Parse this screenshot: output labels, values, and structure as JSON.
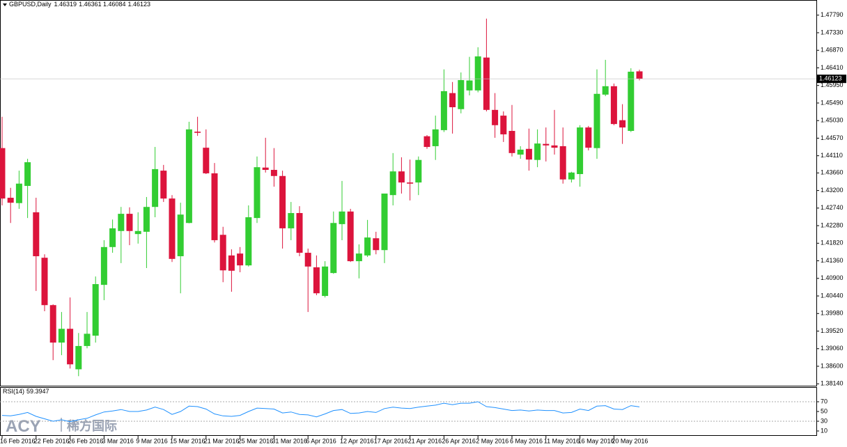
{
  "chart_data": [
    {
      "type": "candlestick",
      "title": "GBPUSD,Daily",
      "categories": [
        "16 Feb 2016",
        null,
        null,
        null,
        "22 Feb 2016",
        null,
        null,
        null,
        "26 Feb 2016",
        null,
        null,
        null,
        "3 Mar 2016",
        null,
        null,
        null,
        "9 Mar 2016",
        null,
        null,
        null,
        "15 Mar 2016",
        null,
        null,
        null,
        "21 Mar 2016",
        null,
        null,
        null,
        "25 Mar 2016",
        null,
        null,
        null,
        "31 Mar 2016",
        null,
        null,
        null,
        "6 Apr 2016",
        null,
        null,
        null,
        "12 Apr 2016",
        null,
        null,
        null,
        "17 Apr 2016",
        null,
        null,
        null,
        "21 Apr 2016",
        null,
        null,
        null,
        "26 Apr 2016",
        null,
        null,
        null,
        "2 May 2016",
        null,
        null,
        null,
        "6 May 2016",
        null,
        null,
        null,
        "11 May 2016",
        null,
        null,
        null,
        "16 May 2016",
        null,
        null,
        null,
        "20 May 2016",
        null,
        null,
        null
      ],
      "open": [
        1.4431,
        1.4301,
        1.4287,
        1.4332,
        1.4263,
        1.4144,
        1.402,
        1.3922,
        1.3958,
        1.3852,
        1.3913,
        1.394,
        1.4073,
        1.4172,
        1.4214,
        1.4259,
        1.4206,
        1.4212,
        1.4277,
        1.4372,
        1.4299,
        1.4148,
        1.4235,
        1.4474,
        1.4432,
        1.4365,
        1.4204,
        1.415,
        1.4155,
        1.4124,
        1.4248,
        1.438,
        1.4374,
        1.4358,
        1.4221,
        1.4261,
        1.4157,
        1.4119,
        1.4044,
        1.4104,
        1.4232,
        1.4265,
        1.4135,
        1.415,
        1.4195,
        1.4164,
        1.4308,
        1.437,
        1.4341,
        1.4341,
        1.4462,
        1.4436,
        1.4478,
        1.4575,
        1.4533,
        1.4582,
        1.4582,
        1.4668,
        1.4531,
        1.4516,
        1.4476,
        1.4414,
        1.4429,
        1.44,
        1.4442,
        1.4438,
        1.4436,
        1.4349,
        1.4363,
        1.4485,
        1.4431,
        1.4571,
        1.4593,
        1.4504,
        1.4476,
        1.46319
      ],
      "high": [
        1.4513,
        1.4327,
        1.4372,
        1.4403,
        1.4301,
        1.4153,
        1.4022,
        1.4002,
        1.404,
        1.3947,
        1.4002,
        1.4095,
        1.419,
        1.4244,
        1.4277,
        1.4276,
        1.4263,
        1.4303,
        1.4434,
        1.4387,
        1.4308,
        1.4288,
        1.45,
        1.4513,
        1.448,
        1.4392,
        1.4225,
        1.4166,
        1.4172,
        1.4281,
        1.4409,
        1.4458,
        1.4431,
        1.4372,
        1.429,
        1.4279,
        1.4168,
        1.415,
        1.4135,
        1.4265,
        1.4345,
        1.4272,
        1.4179,
        1.4243,
        1.4212,
        1.4312,
        1.4418,
        1.4407,
        1.4401,
        1.4409,
        1.4465,
        1.4516,
        1.4637,
        1.4604,
        1.4629,
        1.467,
        1.4695,
        1.477,
        1.4575,
        1.4527,
        1.4544,
        1.4436,
        1.4482,
        1.448,
        1.4485,
        1.4531,
        1.4485,
        1.4369,
        1.4491,
        1.4489,
        1.4637,
        1.4662,
        1.46,
        1.4546,
        1.464,
        1.46361
      ],
      "low": [
        1.4281,
        1.4235,
        1.4272,
        1.4248,
        1.4057,
        1.4004,
        1.3876,
        1.3889,
        1.3854,
        1.3834,
        1.3907,
        1.3922,
        1.4033,
        1.4157,
        1.413,
        1.4177,
        1.4181,
        1.4117,
        1.425,
        1.429,
        1.4133,
        1.4051,
        1.4234,
        1.4463,
        1.4363,
        1.4184,
        1.408,
        1.4055,
        1.4106,
        1.4121,
        1.4235,
        1.4367,
        1.433,
        1.4168,
        1.419,
        1.4148,
        1.4002,
        1.4046,
        1.404,
        1.4102,
        1.419,
        1.4133,
        1.409,
        1.4146,
        1.4153,
        1.413,
        1.4281,
        1.4312,
        1.4294,
        1.4308,
        1.4429,
        1.44,
        1.4473,
        1.4469,
        1.4522,
        1.4569,
        1.4577,
        1.4527,
        1.4458,
        1.4447,
        1.4409,
        1.4403,
        1.4372,
        1.4381,
        1.4396,
        1.4414,
        1.4338,
        1.4341,
        1.433,
        1.4425,
        1.4403,
        1.4567,
        1.4491,
        1.4442,
        1.4473,
        1.46084
      ],
      "close": [
        1.4299,
        1.4288,
        1.4338,
        1.4394,
        1.4148,
        1.402,
        1.3922,
        1.3958,
        1.3865,
        1.3913,
        1.3945,
        1.4075,
        1.4172,
        1.4221,
        1.4259,
        1.4214,
        1.4214,
        1.4277,
        1.4376,
        1.4299,
        1.4141,
        1.4257,
        1.448,
        1.4471,
        1.4365,
        1.419,
        1.4111,
        1.411,
        1.4124,
        1.425,
        1.4381,
        1.4374,
        1.4358,
        1.4221,
        1.4261,
        1.4157,
        1.4121,
        1.4051,
        1.4121,
        1.4235,
        1.4265,
        1.4135,
        1.4155,
        1.4197,
        1.4164,
        1.4312,
        1.437,
        1.4341,
        1.4338,
        1.44,
        1.4434,
        1.448,
        1.458,
        1.4538,
        1.4609,
        1.4608,
        1.4671,
        1.4531,
        1.4491,
        1.4467,
        1.4418,
        1.4427,
        1.4401,
        1.4443,
        1.4438,
        1.4432,
        1.4349,
        1.4367,
        1.4485,
        1.4432,
        1.4573,
        1.4593,
        1.4494,
        1.4485,
        1.4631,
        1.46123
      ],
      "up_color": "#32cd32",
      "down_color": "#dc143c",
      "ylim": [
        1.3809,
        1.4815
      ],
      "yticks": [
        {
          "value": 1.3814,
          "label": "1.38140"
        },
        {
          "value": 1.386,
          "label": "1.38600"
        },
        {
          "value": 1.3906,
          "label": "1.39060"
        },
        {
          "value": 1.3952,
          "label": "1.39520"
        },
        {
          "value": 1.3998,
          "label": "1.39980"
        },
        {
          "value": 1.4044,
          "label": "1.40440"
        },
        {
          "value": 1.409,
          "label": "1.40900"
        },
        {
          "value": 1.4136,
          "label": "1.41360"
        },
        {
          "value": 1.4182,
          "label": "1.41820"
        },
        {
          "value": 1.4228,
          "label": "1.42280"
        },
        {
          "value": 1.4274,
          "label": "1.42740"
        },
        {
          "value": 1.432,
          "label": "1.43200"
        },
        {
          "value": 1.4366,
          "label": "1.43660"
        },
        {
          "value": 1.4411,
          "label": "1.44110"
        },
        {
          "value": 1.4457,
          "label": "1.44570"
        },
        {
          "value": 1.4503,
          "label": "1.45030"
        },
        {
          "value": 1.4549,
          "label": "1.45490"
        },
        {
          "value": 1.4595,
          "label": "1.45950"
        },
        {
          "value": 1.4641,
          "label": "1.46410"
        },
        {
          "value": 1.4687,
          "label": "1.46870"
        },
        {
          "value": 1.4733,
          "label": "1.47330"
        },
        {
          "value": 1.4779,
          "label": "1.47790"
        }
      ]
    },
    {
      "type": "line",
      "title": "RSI(14)",
      "series": [
        {
          "name": "RSI(14)",
          "color": "#1e90ff",
          "values": [
            42,
            41,
            44,
            48,
            40,
            35,
            30,
            33,
            29,
            33,
            36,
            43,
            49,
            51,
            54,
            50,
            50,
            53,
            59,
            54,
            44,
            50,
            61,
            60,
            55,
            45,
            41,
            40,
            42,
            50,
            57,
            56,
            55,
            47,
            49,
            44,
            43,
            39,
            45,
            52,
            54,
            46,
            47,
            50,
            48,
            56,
            59,
            57,
            56,
            59,
            61,
            63,
            67,
            64,
            67,
            67,
            70,
            60,
            58,
            55,
            52,
            53,
            51,
            53,
            52,
            52,
            47,
            48,
            55,
            52,
            61,
            62,
            55,
            54,
            62,
            59.3947
          ]
        }
      ],
      "ylim": [
        0,
        100
      ],
      "yticks": [
        10,
        30,
        50,
        70
      ],
      "levels": [
        30,
        70
      ]
    }
  ],
  "watermark": {
    "brand": "ACY",
    "name": "稀方国际"
  }
}
